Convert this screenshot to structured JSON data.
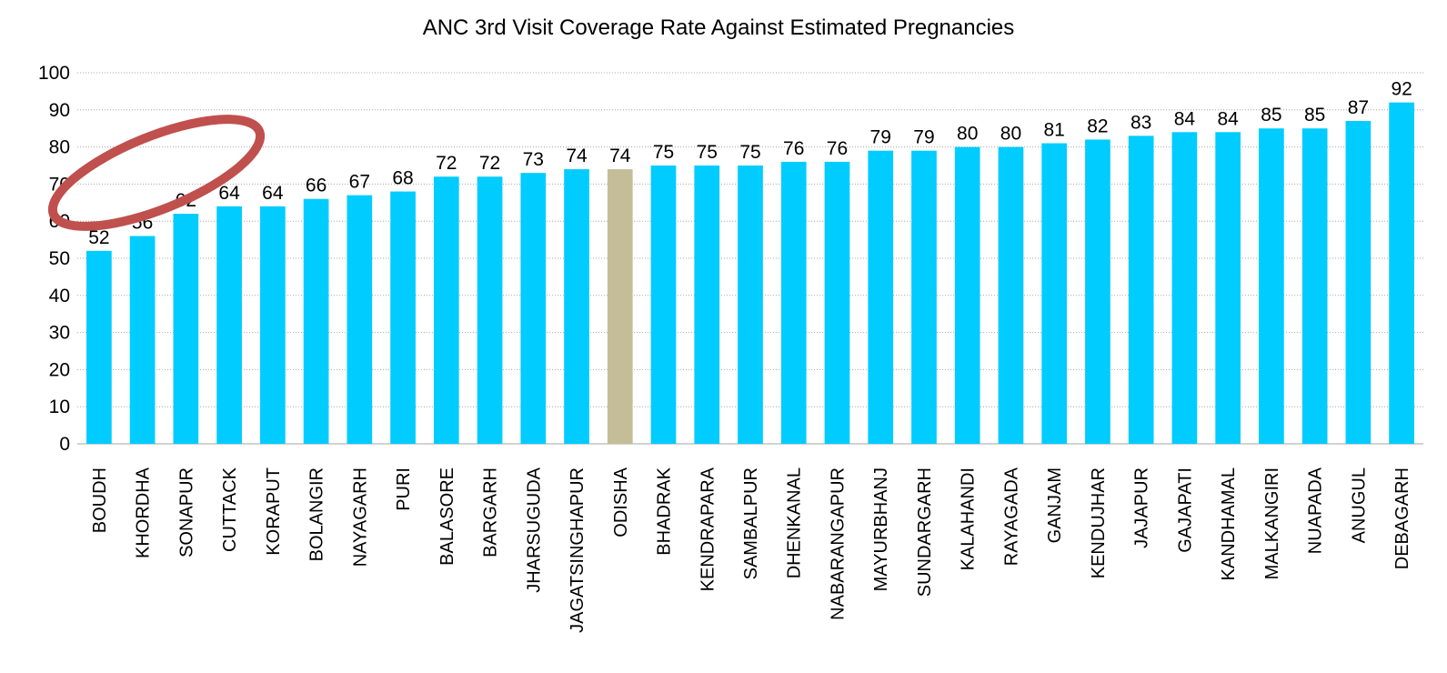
{
  "chart_data": {
    "type": "bar",
    "title": "ANC 3rd Visit Coverage Rate Against Estimated Pregnancies",
    "categories": [
      "BOUDH",
      "KHORDHA",
      "SONAPUR",
      "CUTTACK",
      "KORAPUT",
      "BOLANGIR",
      "NAYAGARH",
      "PURI",
      "BALASORE",
      "BARGARH",
      "JHARSUGUDA",
      "JAGATSINGHAPUR",
      "ODISHA",
      "BHADRAK",
      "KENDRAPARA",
      "SAMBALPUR",
      "DHENKANAL",
      "NABARANGAPUR",
      "MAYURBHANJ",
      "SUNDARGARH",
      "KALAHANDI",
      "RAYAGADA",
      "GANJAM",
      "KENDUJHAR",
      "JAJAPUR",
      "GAJAPATI",
      "KANDHAMAL",
      "MALKANGIRI",
      "NUAPADA",
      "ANUGUL",
      "DEBAGARH"
    ],
    "values": [
      52,
      56,
      62,
      64,
      64,
      66,
      67,
      68,
      72,
      72,
      73,
      74,
      74,
      75,
      75,
      75,
      76,
      76,
      79,
      79,
      80,
      80,
      81,
      82,
      83,
      84,
      84,
      85,
      85,
      87,
      92
    ],
    "colors": [
      "#00ccff",
      "#00ccff",
      "#00ccff",
      "#00ccff",
      "#00ccff",
      "#00ccff",
      "#00ccff",
      "#00ccff",
      "#00ccff",
      "#00ccff",
      "#00ccff",
      "#00ccff",
      "#c4bd97",
      "#00ccff",
      "#00ccff",
      "#00ccff",
      "#00ccff",
      "#00ccff",
      "#00ccff",
      "#00ccff",
      "#00ccff",
      "#00ccff",
      "#00ccff",
      "#00ccff",
      "#00ccff",
      "#00ccff",
      "#00ccff",
      "#00ccff",
      "#00ccff",
      "#00ccff",
      "#00ccff"
    ],
    "ylim": [
      0,
      100
    ],
    "yticks": [
      0,
      10,
      20,
      30,
      40,
      50,
      60,
      70,
      80,
      90,
      100
    ],
    "grid": true
  }
}
